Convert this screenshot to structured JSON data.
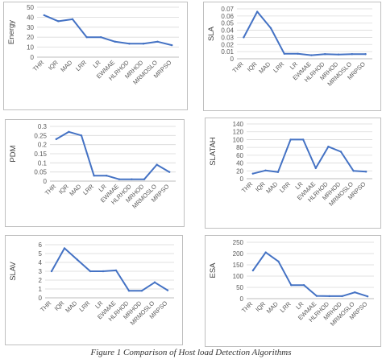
{
  "colors": {
    "line": "#4472C4",
    "grid": "#d9d9d9",
    "text": "#595959",
    "border": "#bfbfbf",
    "axis_title": "#404040"
  },
  "categories": [
    "THR",
    "IQR",
    "MAD",
    "LRR",
    "LR",
    "EWMAE",
    "HLRHOD",
    "MRHOD",
    "MRMOSLO",
    "MRPSO"
  ],
  "caption": "Figure 1 Comparison of Host load Detection Algorithms",
  "chart_data": [
    {
      "type": "line",
      "ylabel": "Energy",
      "categories": [
        "THR",
        "IQR",
        "MAD",
        "LRR",
        "LR",
        "EWMAE",
        "HLRHOD",
        "MRHOD",
        "MRMOSLO",
        "MRPSO"
      ],
      "yticks": [
        "0",
        "10",
        "20",
        "30",
        "40",
        "50"
      ],
      "ylim": [
        0,
        50
      ],
      "grid": true,
      "values": [
        42,
        36,
        38,
        20,
        20,
        15.5,
        13.5,
        13.5,
        15.5,
        12
      ]
    },
    {
      "type": "line",
      "ylabel": "SLA",
      "categories": [
        "THR",
        "IQR",
        "MAD",
        "LRR",
        "LR",
        "EWMAE",
        "HLRHOD",
        "MRHOD",
        "MRMOSLO",
        "MRPSO"
      ],
      "yticks": [
        "0",
        "0.01",
        "0.02",
        "0.03",
        "0.04",
        "0.05",
        "0.06",
        "0.07"
      ],
      "ylim": [
        0,
        0.07
      ],
      "grid": true,
      "values": [
        0.03,
        0.066,
        0.043,
        0.007,
        0.007,
        0.005,
        0.0065,
        0.006,
        0.0065,
        0.0065
      ]
    },
    {
      "type": "line",
      "ylabel": "PDM",
      "categories": [
        "THR",
        "IQR",
        "MAD",
        "LRR",
        "LR",
        "EWMAE",
        "HLRHOD",
        "MRHOD",
        "MRMOSLO",
        "MRPSO"
      ],
      "yticks": [
        "0",
        "0.05",
        "0.1",
        "0.15",
        "0.2",
        "0.25",
        "0.3"
      ],
      "ylim": [
        0,
        0.3
      ],
      "grid": true,
      "values": [
        0.23,
        0.27,
        0.25,
        0.03,
        0.03,
        0.01,
        0.01,
        0.01,
        0.09,
        0.05
      ]
    },
    {
      "type": "line",
      "ylabel": "SLATAH",
      "categories": [
        "THR",
        "IQR",
        "MAD",
        "LRR",
        "LR",
        "EWMAE",
        "HLRHOD",
        "MRHOD",
        "MRMOSLO",
        "MRPSO"
      ],
      "yticks": [
        "0",
        "20",
        "40",
        "60",
        "80",
        "100",
        "120",
        "140"
      ],
      "ylim": [
        0,
        140
      ],
      "grid": true,
      "values": [
        13,
        21,
        17,
        100,
        100,
        27,
        82,
        69,
        20,
        18
      ]
    },
    {
      "type": "line",
      "ylabel": "SLAV",
      "categories": [
        "THR",
        "IQR",
        "MAD",
        "LRR",
        "LR",
        "EWMAE",
        "HLRHOD",
        "MRHOD",
        "MRMOSLO",
        "MRPSO"
      ],
      "yticks": [
        "0",
        "1",
        "2",
        "3",
        "4",
        "5",
        "6"
      ],
      "ylim": [
        0,
        6
      ],
      "grid": true,
      "values": [
        3,
        5.6,
        4.3,
        3,
        3,
        3.1,
        0.8,
        0.8,
        1.75,
        0.85
      ]
    },
    {
      "type": "line",
      "ylabel": "ESA",
      "categories": [
        "THR",
        "IQR",
        "MAD",
        "LRR",
        "LR",
        "EWMAE",
        "HLRHOD",
        "MRHOD",
        "MRMOSLO",
        "MRPSO"
      ],
      "yticks": [
        "0",
        "50",
        "100",
        "150",
        "200",
        "250"
      ],
      "ylim": [
        0,
        250
      ],
      "grid": true,
      "values": [
        125,
        205,
        165,
        60,
        60,
        12,
        11,
        11,
        28,
        10
      ]
    }
  ]
}
